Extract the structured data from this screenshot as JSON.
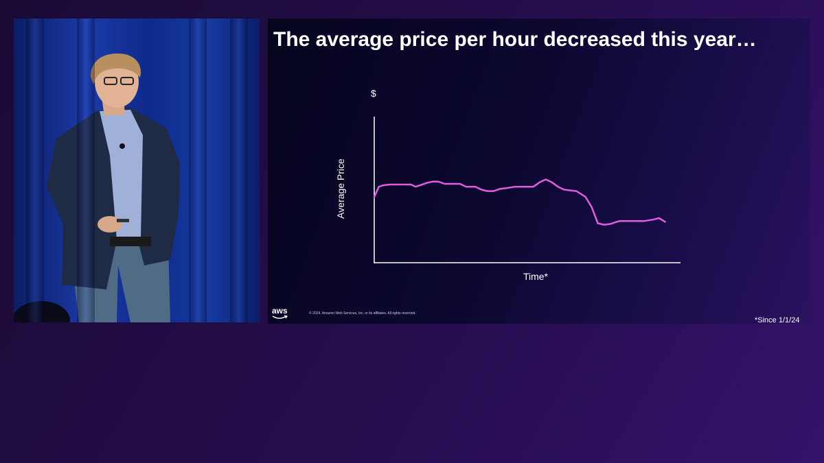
{
  "slide": {
    "title": "The average price per hour decreased this year…",
    "footnote": "*Since 1/1/24",
    "copyright": "© 2024, Amazon Web Services, Inc. or its affiliates. All rights reserved.",
    "logo_text": "aws"
  },
  "colors": {
    "line": "#e35ce0",
    "axis": "#ffffff",
    "text": "#ffffff"
  },
  "chart_data": {
    "type": "line",
    "title": "",
    "xlabel": "Time*",
    "ylabel": "Average Price",
    "y_unit_label": "$",
    "xlim": [
      0,
      100
    ],
    "ylim": [
      0,
      10
    ],
    "grid": false,
    "series": [
      {
        "name": "Average Price",
        "x": [
          0,
          1.5,
          3,
          5,
          12,
          13.5,
          15,
          17,
          19,
          21,
          23,
          26,
          28,
          30,
          33,
          35,
          37,
          39,
          41,
          43,
          46,
          48,
          52,
          54,
          56,
          58,
          60,
          62,
          64,
          66,
          69,
          71,
          73,
          75,
          77,
          78.5,
          80,
          82,
          85,
          88,
          91,
          93,
          95
        ],
        "y": [
          4.5,
          5.2,
          5.3,
          5.35,
          5.35,
          5.2,
          5.3,
          5.45,
          5.55,
          5.55,
          5.4,
          5.4,
          5.4,
          5.2,
          5.2,
          5.0,
          4.9,
          4.9,
          5.05,
          5.1,
          5.2,
          5.2,
          5.2,
          5.5,
          5.7,
          5.5,
          5.2,
          5.0,
          4.95,
          4.9,
          4.5,
          3.8,
          2.7,
          2.6,
          2.65,
          2.75,
          2.85,
          2.85,
          2.85,
          2.85,
          2.95,
          3.05,
          2.8
        ]
      }
    ]
  }
}
